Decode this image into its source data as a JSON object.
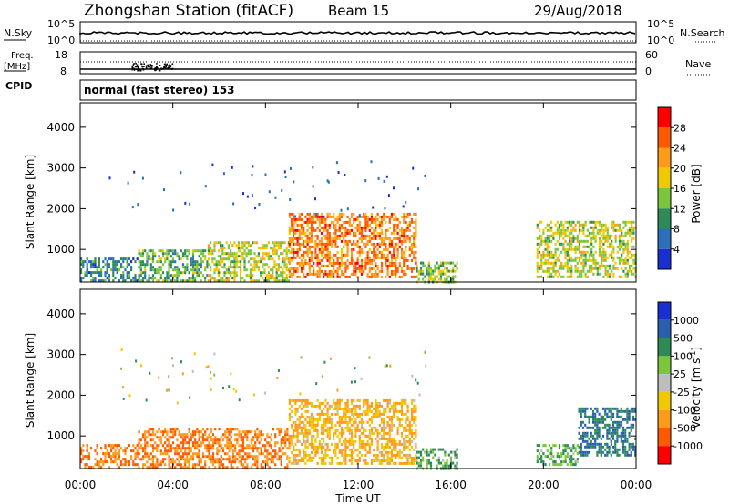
{
  "header": {
    "title": "Zhongshan Station (fitACF)",
    "beam": "Beam 15",
    "date": "29/Aug/2018"
  },
  "panels": {
    "nsky": {
      "label": "N.Sky",
      "left_ticks": [
        "10^5",
        "10^0"
      ],
      "right_ticks": [
        "10^5",
        "10^0"
      ],
      "right_label": "N.Search"
    },
    "freq": {
      "label_line1": "Freq.",
      "label_line2": "[MHz]",
      "left_ticks": [
        "18",
        "8"
      ],
      "right_ticks": [
        "60",
        "0"
      ],
      "right_label": "Nave"
    },
    "cpid": {
      "label": "CPID",
      "text": "normal (fast stereo) 153"
    }
  },
  "colorbars": {
    "power": {
      "label": "Power [dB]",
      "ticks": [
        "28",
        "24",
        "20",
        "16",
        "12",
        "8",
        "4"
      ],
      "colors": [
        "#ff0000",
        "#ff5a00",
        "#ff9a1a",
        "#f0c800",
        "#7cc63c",
        "#2e8b57",
        "#2a6fb8",
        "#1a2fd0"
      ]
    },
    "velocity": {
      "label": "Velocity [m s",
      "label_sup": "-1",
      "label_end": "]",
      "ticks": [
        "1000",
        "500",
        "100",
        "25",
        "-25",
        "-100",
        "-500",
        "-1000"
      ],
      "colors": [
        "#1a2fd0",
        "#2a5fb0",
        "#2e8b57",
        "#7cc63c",
        "#bdbdbd",
        "#f0c800",
        "#ff9a1a",
        "#ff5a00",
        "#ff0000"
      ]
    }
  },
  "chart_data": [
    {
      "type": "heatmap",
      "variable": "power",
      "ylabel": "Slant Range [km]",
      "yticks": [
        1000,
        2000,
        3000,
        4000
      ],
      "ylim": [
        200,
        4600
      ],
      "xlim_hours": [
        0,
        24
      ],
      "unit": "dB",
      "scale_range": [
        0,
        30
      ],
      "echo_regions": [
        {
          "t": [
            0.0,
            2.5
          ],
          "range_km": [
            200,
            800
          ],
          "value": 8
        },
        {
          "t": [
            2.5,
            5.5
          ],
          "range_km": [
            200,
            1000
          ],
          "value": 12
        },
        {
          "t": [
            5.5,
            9.0
          ],
          "range_km": [
            200,
            1200
          ],
          "value": 16
        },
        {
          "t": [
            9.0,
            14.5
          ],
          "range_km": [
            300,
            1900
          ],
          "value": 24
        },
        {
          "t": [
            14.5,
            16.3
          ],
          "range_km": [
            200,
            700
          ],
          "value": 14
        },
        {
          "t": [
            19.7,
            24.0
          ],
          "range_km": [
            300,
            1700
          ],
          "value": 16
        }
      ]
    },
    {
      "type": "heatmap",
      "variable": "velocity",
      "ylabel": "Slant Range [km]",
      "xlabel": "Time UT",
      "xticks": [
        "00:00",
        "04:00",
        "08:00",
        "12:00",
        "16:00",
        "20:00",
        "00:00"
      ],
      "yticks": [
        1000,
        2000,
        3000,
        4000
      ],
      "ylim": [
        200,
        4600
      ],
      "xlim_hours": [
        0,
        24
      ],
      "unit": "m s-1",
      "echo_regions": [
        {
          "t": [
            0.0,
            2.5
          ],
          "range_km": [
            200,
            800
          ],
          "value": -500
        },
        {
          "t": [
            2.5,
            9.0
          ],
          "range_km": [
            200,
            1200
          ],
          "value": -500
        },
        {
          "t": [
            9.0,
            14.5
          ],
          "range_km": [
            300,
            1900
          ],
          "value": -100
        },
        {
          "t": [
            14.5,
            16.3
          ],
          "range_km": [
            200,
            700
          ],
          "value": 100
        },
        {
          "t": [
            19.7,
            21.5
          ],
          "range_km": [
            300,
            800
          ],
          "value": 100
        },
        {
          "t": [
            21.5,
            24.0
          ],
          "range_km": [
            500,
            1700
          ],
          "value": 500
        }
      ]
    }
  ]
}
